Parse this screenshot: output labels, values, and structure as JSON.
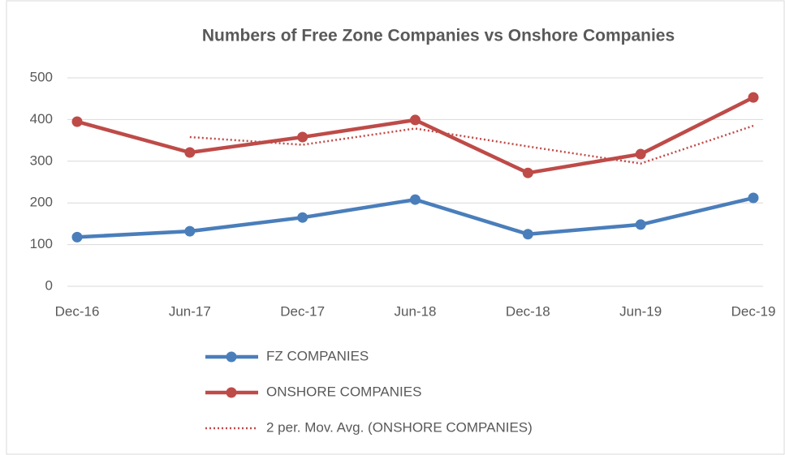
{
  "chart_data": {
    "type": "line",
    "title": "Numbers of Free Zone Companies vs Onshore Companies",
    "categories": [
      "Dec-16",
      "Jun-17",
      "Dec-17",
      "Jun-18",
      "Dec-18",
      "Jun-19",
      "Dec-19"
    ],
    "series": [
      {
        "name": "FZ COMPANIES",
        "color": "#4a7ebb",
        "style": "solid",
        "marker": true,
        "values": [
          118,
          132,
          165,
          208,
          125,
          148,
          212
        ]
      },
      {
        "name": "ONSHORE COMPANIES",
        "color": "#be4b48",
        "style": "solid",
        "marker": true,
        "values": [
          395,
          321,
          358,
          399,
          272,
          317,
          453
        ]
      },
      {
        "name": "2 per. Mov. Avg. (ONSHORE COMPANIES)",
        "color": "#be4b48",
        "style": "dotted",
        "marker": false,
        "values": [
          null,
          358,
          339.5,
          378.5,
          335.5,
          294.5,
          385
        ]
      }
    ],
    "ylim": [
      0,
      500
    ],
    "yticks": [
      0,
      100,
      200,
      300,
      400,
      500
    ],
    "grid": true,
    "legend": "bottom"
  }
}
